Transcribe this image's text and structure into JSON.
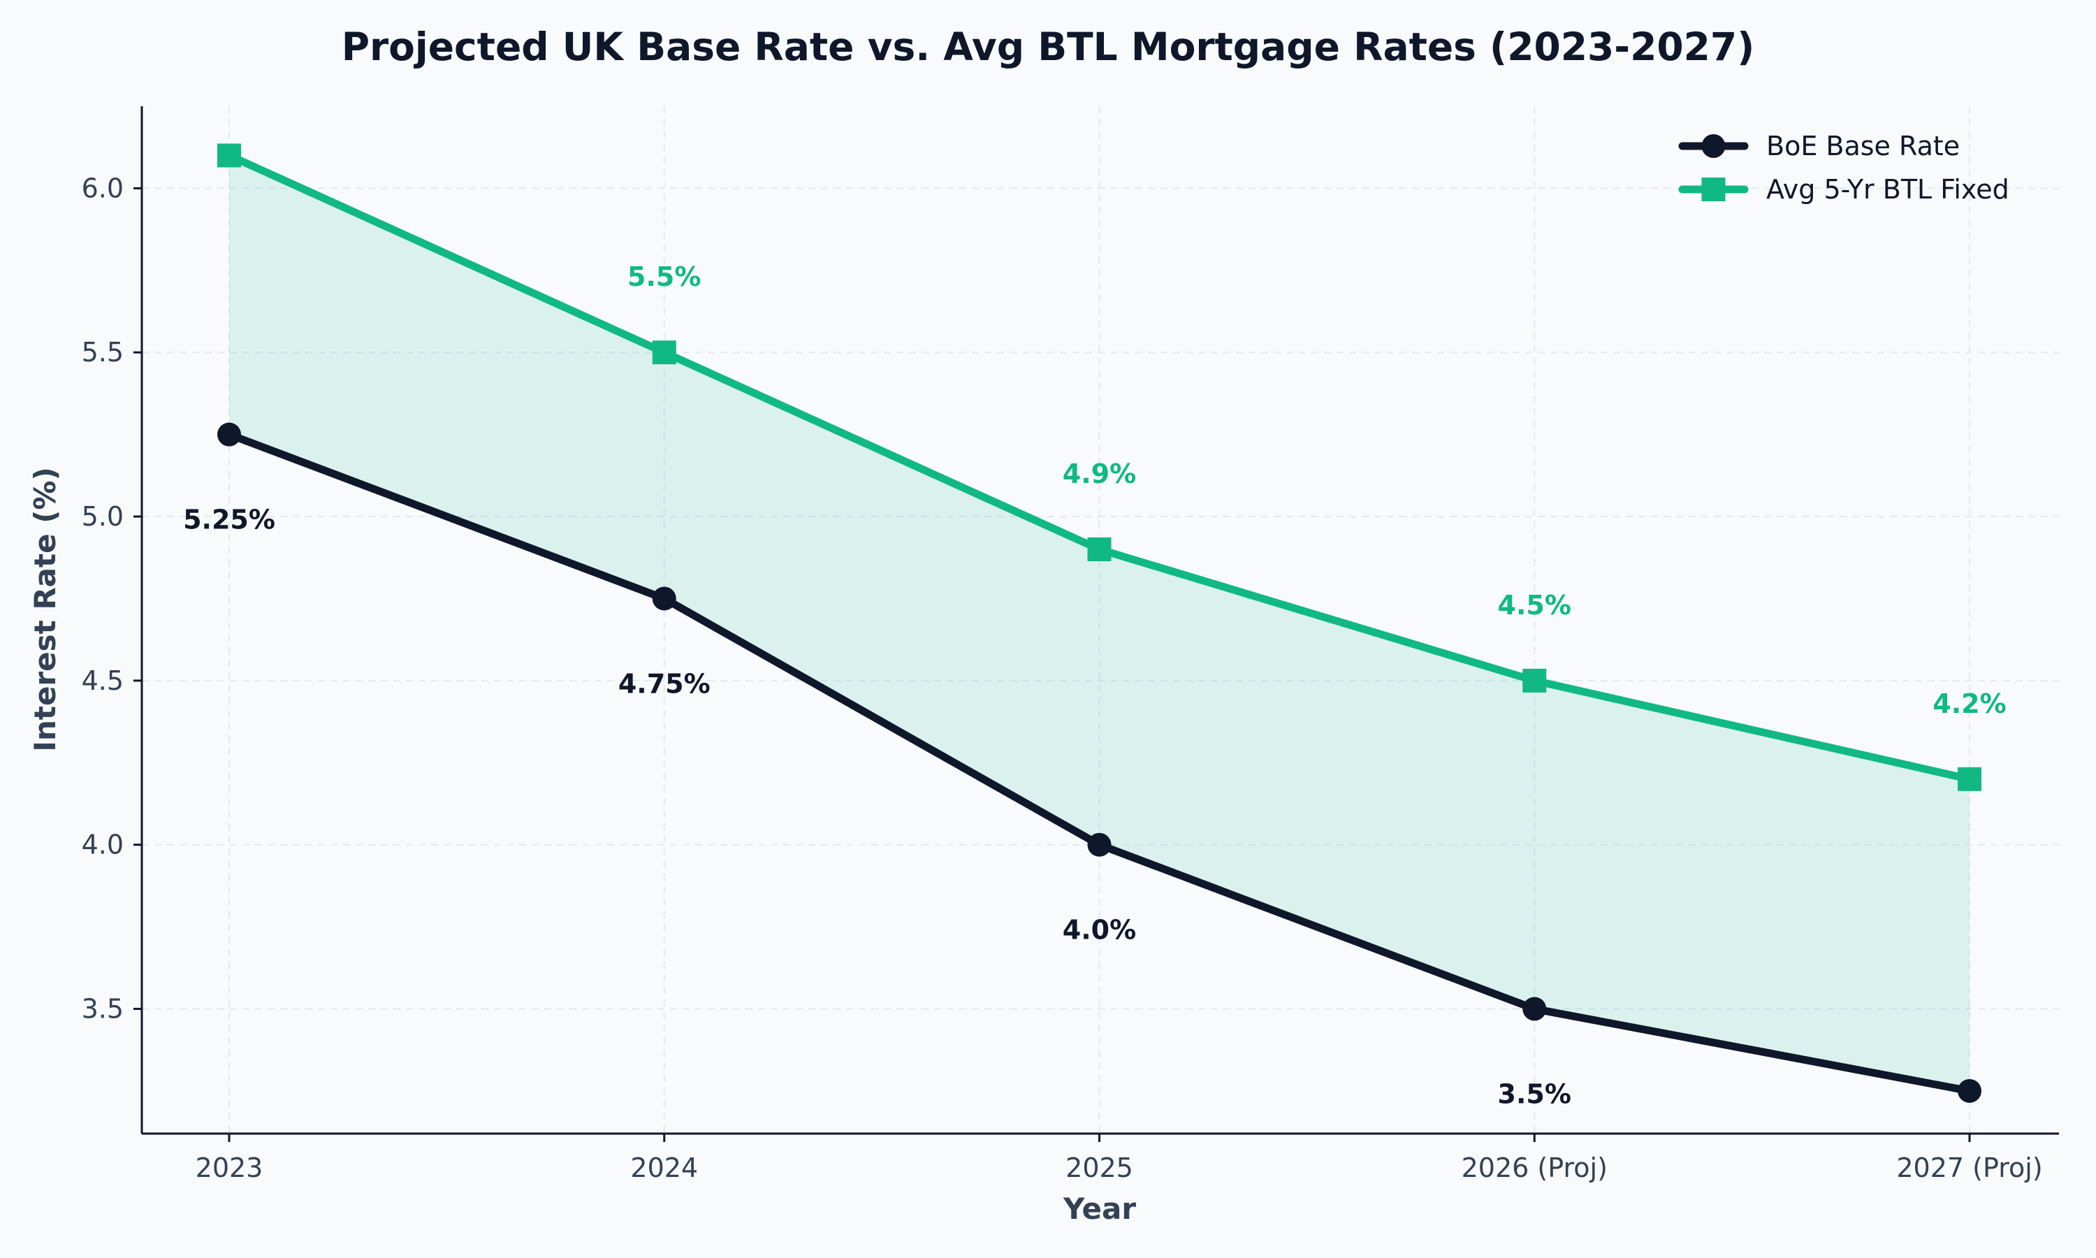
{
  "chart_data": {
    "type": "line",
    "title": "Projected UK Base Rate vs. Avg BTL Mortgage Rates (2023-2027)",
    "xlabel": "Year",
    "ylabel": "Interest Rate (%)",
    "categories": [
      "2023",
      "2024",
      "2025",
      "2026 (Proj)",
      "2027 (Proj)"
    ],
    "ylim": [
      3.12,
      6.25
    ],
    "yticks": [
      "3.5",
      "4.0",
      "4.5",
      "5.0",
      "5.5",
      "6.0"
    ],
    "grid": true,
    "legend_position": "top-right",
    "fill_between": true,
    "series": [
      {
        "name": "BoE Base Rate",
        "values": [
          5.25,
          4.75,
          4.0,
          3.5,
          3.25
        ],
        "labels": [
          "5.25%",
          "4.75%",
          "4.0%",
          "3.5%",
          ""
        ],
        "color": "#0f172a",
        "marker": "circle",
        "label_position": "below"
      },
      {
        "name": "Avg 5-Yr BTL Fixed",
        "values": [
          6.1,
          5.5,
          4.9,
          4.5,
          4.2
        ],
        "labels": [
          "",
          "5.5%",
          "4.9%",
          "4.5%",
          "4.2%"
        ],
        "color": "#10b981",
        "marker": "square",
        "label_position": "above"
      }
    ],
    "fill_color": "#10b981"
  }
}
